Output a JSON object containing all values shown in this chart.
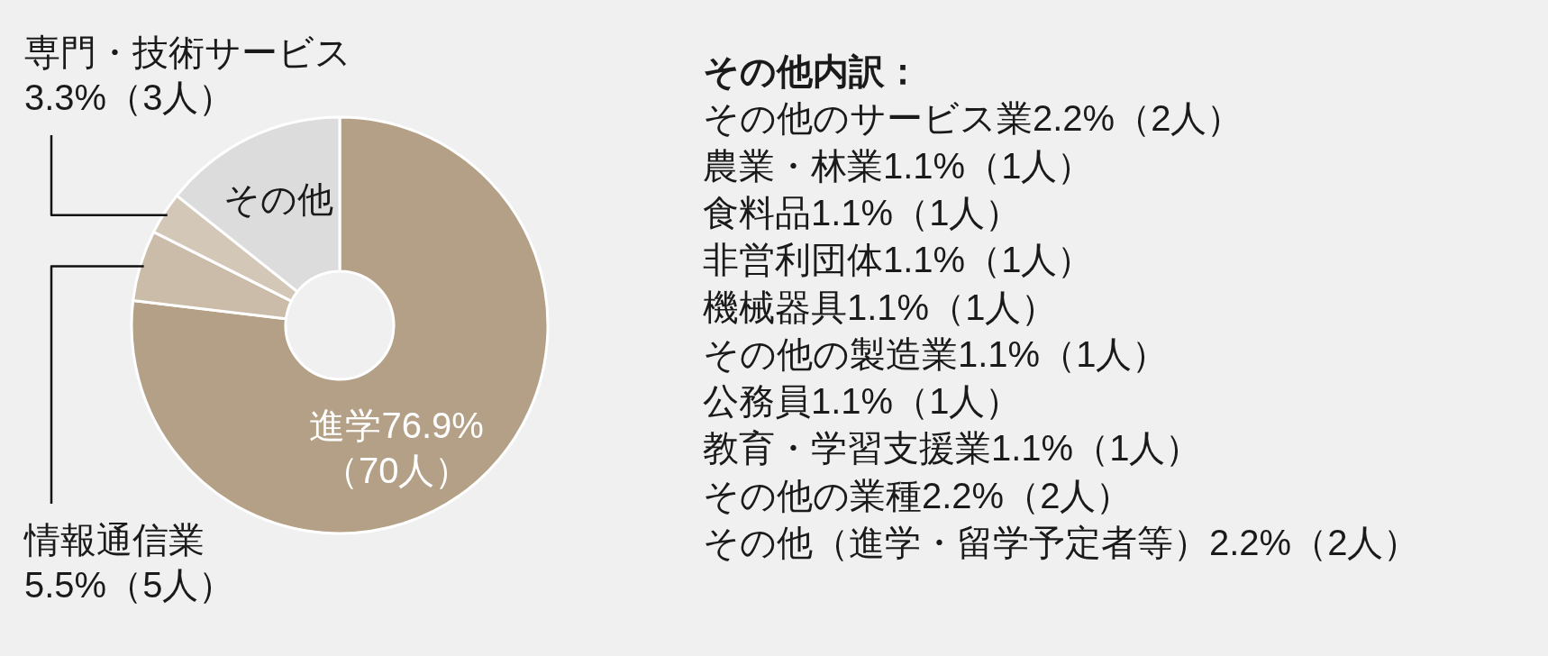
{
  "chart_data": [
    {
      "type": "donut",
      "categories": [
        "進学",
        "情報通信業",
        "専門・技術サービス",
        "その他"
      ],
      "values": [
        76.9,
        5.5,
        3.3,
        14.3
      ],
      "colors": [
        "#b4a086",
        "#cbbcaa",
        "#d3c7b7",
        "#dcdcdc"
      ],
      "value_labels": [
        "76.9%\n（70人）",
        "5.5%（5人）",
        "3.3%（3人）",
        null
      ]
    },
    {
      "type": "other",
      "title": "その他内訳：",
      "annotations": [
        "その他のサービス業2.2%（2人）",
        "農業・林業1.1%（1人）",
        "食料品1.1%（1人）",
        "非営利団体1.1%（1人）",
        "機械器具1.1%（1人）",
        "その他の製造業1.1%（1人）",
        "公務員1.1%（1人）",
        "教育・学習支援業1.1%（1人）",
        "その他の業種2.2%（2人）",
        "その他（進学・留学予定者等）2.2%（2人）"
      ]
    }
  ]
}
